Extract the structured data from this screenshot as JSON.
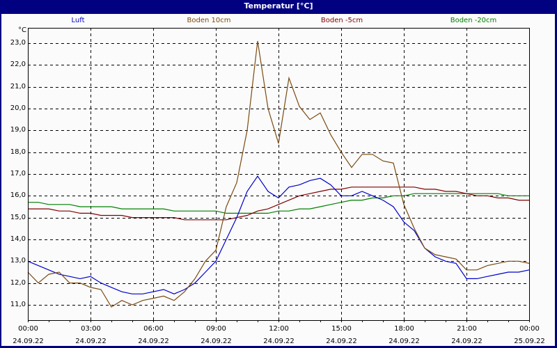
{
  "window": {
    "title": "Temperatur [°C]"
  },
  "legend": [
    {
      "label": "Luft",
      "color": "#0000cc"
    },
    {
      "label": "Boden 10cm",
      "color": "#7a4a10"
    },
    {
      "label": "Boden -5cm",
      "color": "#800000"
    },
    {
      "label": "Boden -20cm",
      "color": "#008000"
    }
  ],
  "y_unit": "°C",
  "y_ticks": [
    "23,0",
    "22,0",
    "21,0",
    "20,0",
    "19,0",
    "18,0",
    "17,0",
    "16,0",
    "15,0",
    "14,0",
    "13,0",
    "12,0",
    "11,0"
  ],
  "x_ticks": [
    {
      "time": "00:00",
      "date": "24.09.22"
    },
    {
      "time": "03:00",
      "date": "24.09.22"
    },
    {
      "time": "06:00",
      "date": "24.09.22"
    },
    {
      "time": "09:00",
      "date": "24.09.22"
    },
    {
      "time": "12:00",
      "date": "24.09.22"
    },
    {
      "time": "15:00",
      "date": "24.09.22"
    },
    {
      "time": "18:00",
      "date": "24.09.22"
    },
    {
      "time": "21:00",
      "date": "24.09.22"
    },
    {
      "time": "00:00",
      "date": "25.09.22"
    }
  ],
  "chart_data": {
    "type": "line",
    "title": "Temperatur [°C]",
    "xlabel": "",
    "ylabel": "°C",
    "ylim": [
      10.3,
      23.7
    ],
    "xlim_hours": [
      0,
      24
    ],
    "grid": true,
    "legend_position": "top",
    "x_hours": [
      0,
      0.5,
      1,
      1.5,
      2,
      2.5,
      3,
      3.5,
      4,
      4.5,
      5,
      5.5,
      6,
      6.5,
      7,
      7.5,
      8,
      8.5,
      9,
      9.5,
      10,
      10.5,
      11,
      11.5,
      12,
      12.5,
      13,
      13.5,
      14,
      14.5,
      15,
      15.5,
      16,
      16.5,
      17,
      17.5,
      18,
      18.5,
      19,
      19.5,
      20,
      20.5,
      21,
      21.5,
      22,
      22.5,
      23,
      23.5,
      24
    ],
    "series": [
      {
        "name": "Luft",
        "color": "#0000cc",
        "values": [
          13.0,
          12.8,
          12.6,
          12.4,
          12.3,
          12.2,
          12.3,
          12.0,
          11.8,
          11.6,
          11.5,
          11.5,
          11.6,
          11.7,
          11.5,
          11.7,
          12.0,
          12.5,
          13.0,
          14.0,
          15.0,
          16.2,
          16.9,
          16.2,
          15.9,
          16.4,
          16.5,
          16.7,
          16.8,
          16.5,
          16.0,
          16.0,
          16.2,
          16.0,
          15.8,
          15.5,
          14.8,
          14.4,
          13.6,
          13.2,
          13.0,
          12.9,
          12.2,
          12.2,
          12.3,
          12.4,
          12.5,
          12.5,
          12.6
        ]
      },
      {
        "name": "Boden 10cm",
        "color": "#7a4a10",
        "values": [
          12.5,
          12.0,
          12.4,
          12.5,
          12.0,
          12.0,
          11.8,
          11.7,
          10.9,
          11.2,
          11.0,
          11.2,
          11.3,
          11.4,
          11.2,
          11.6,
          12.2,
          13.0,
          13.5,
          15.5,
          16.6,
          19.0,
          23.1,
          20.0,
          18.4,
          21.4,
          20.1,
          19.5,
          19.8,
          18.8,
          18.0,
          17.3,
          17.9,
          17.9,
          17.6,
          17.5,
          15.6,
          14.5,
          13.6,
          13.3,
          13.2,
          13.1,
          12.6,
          12.6,
          12.8,
          12.9,
          13.0,
          13.0,
          12.9
        ]
      },
      {
        "name": "Boden -5cm",
        "color": "#800000",
        "values": [
          15.4,
          15.4,
          15.4,
          15.3,
          15.3,
          15.2,
          15.2,
          15.1,
          15.1,
          15.1,
          15.0,
          15.0,
          15.0,
          15.0,
          15.0,
          14.9,
          14.9,
          14.9,
          14.9,
          14.9,
          15.0,
          15.1,
          15.3,
          15.4,
          15.6,
          15.8,
          16.0,
          16.1,
          16.2,
          16.3,
          16.3,
          16.4,
          16.4,
          16.4,
          16.4,
          16.4,
          16.4,
          16.4,
          16.3,
          16.3,
          16.2,
          16.2,
          16.1,
          16.0,
          16.0,
          15.9,
          15.9,
          15.8,
          15.8
        ]
      },
      {
        "name": "Boden -20cm",
        "color": "#008000",
        "values": [
          15.7,
          15.7,
          15.6,
          15.6,
          15.6,
          15.5,
          15.5,
          15.5,
          15.5,
          15.4,
          15.4,
          15.4,
          15.4,
          15.4,
          15.3,
          15.3,
          15.3,
          15.3,
          15.3,
          15.2,
          15.2,
          15.2,
          15.2,
          15.2,
          15.3,
          15.3,
          15.4,
          15.4,
          15.5,
          15.6,
          15.7,
          15.8,
          15.8,
          15.9,
          15.9,
          16.0,
          16.0,
          16.1,
          16.1,
          16.1,
          16.1,
          16.1,
          16.1,
          16.1,
          16.1,
          16.1,
          16.0,
          16.0,
          16.0
        ]
      }
    ]
  }
}
